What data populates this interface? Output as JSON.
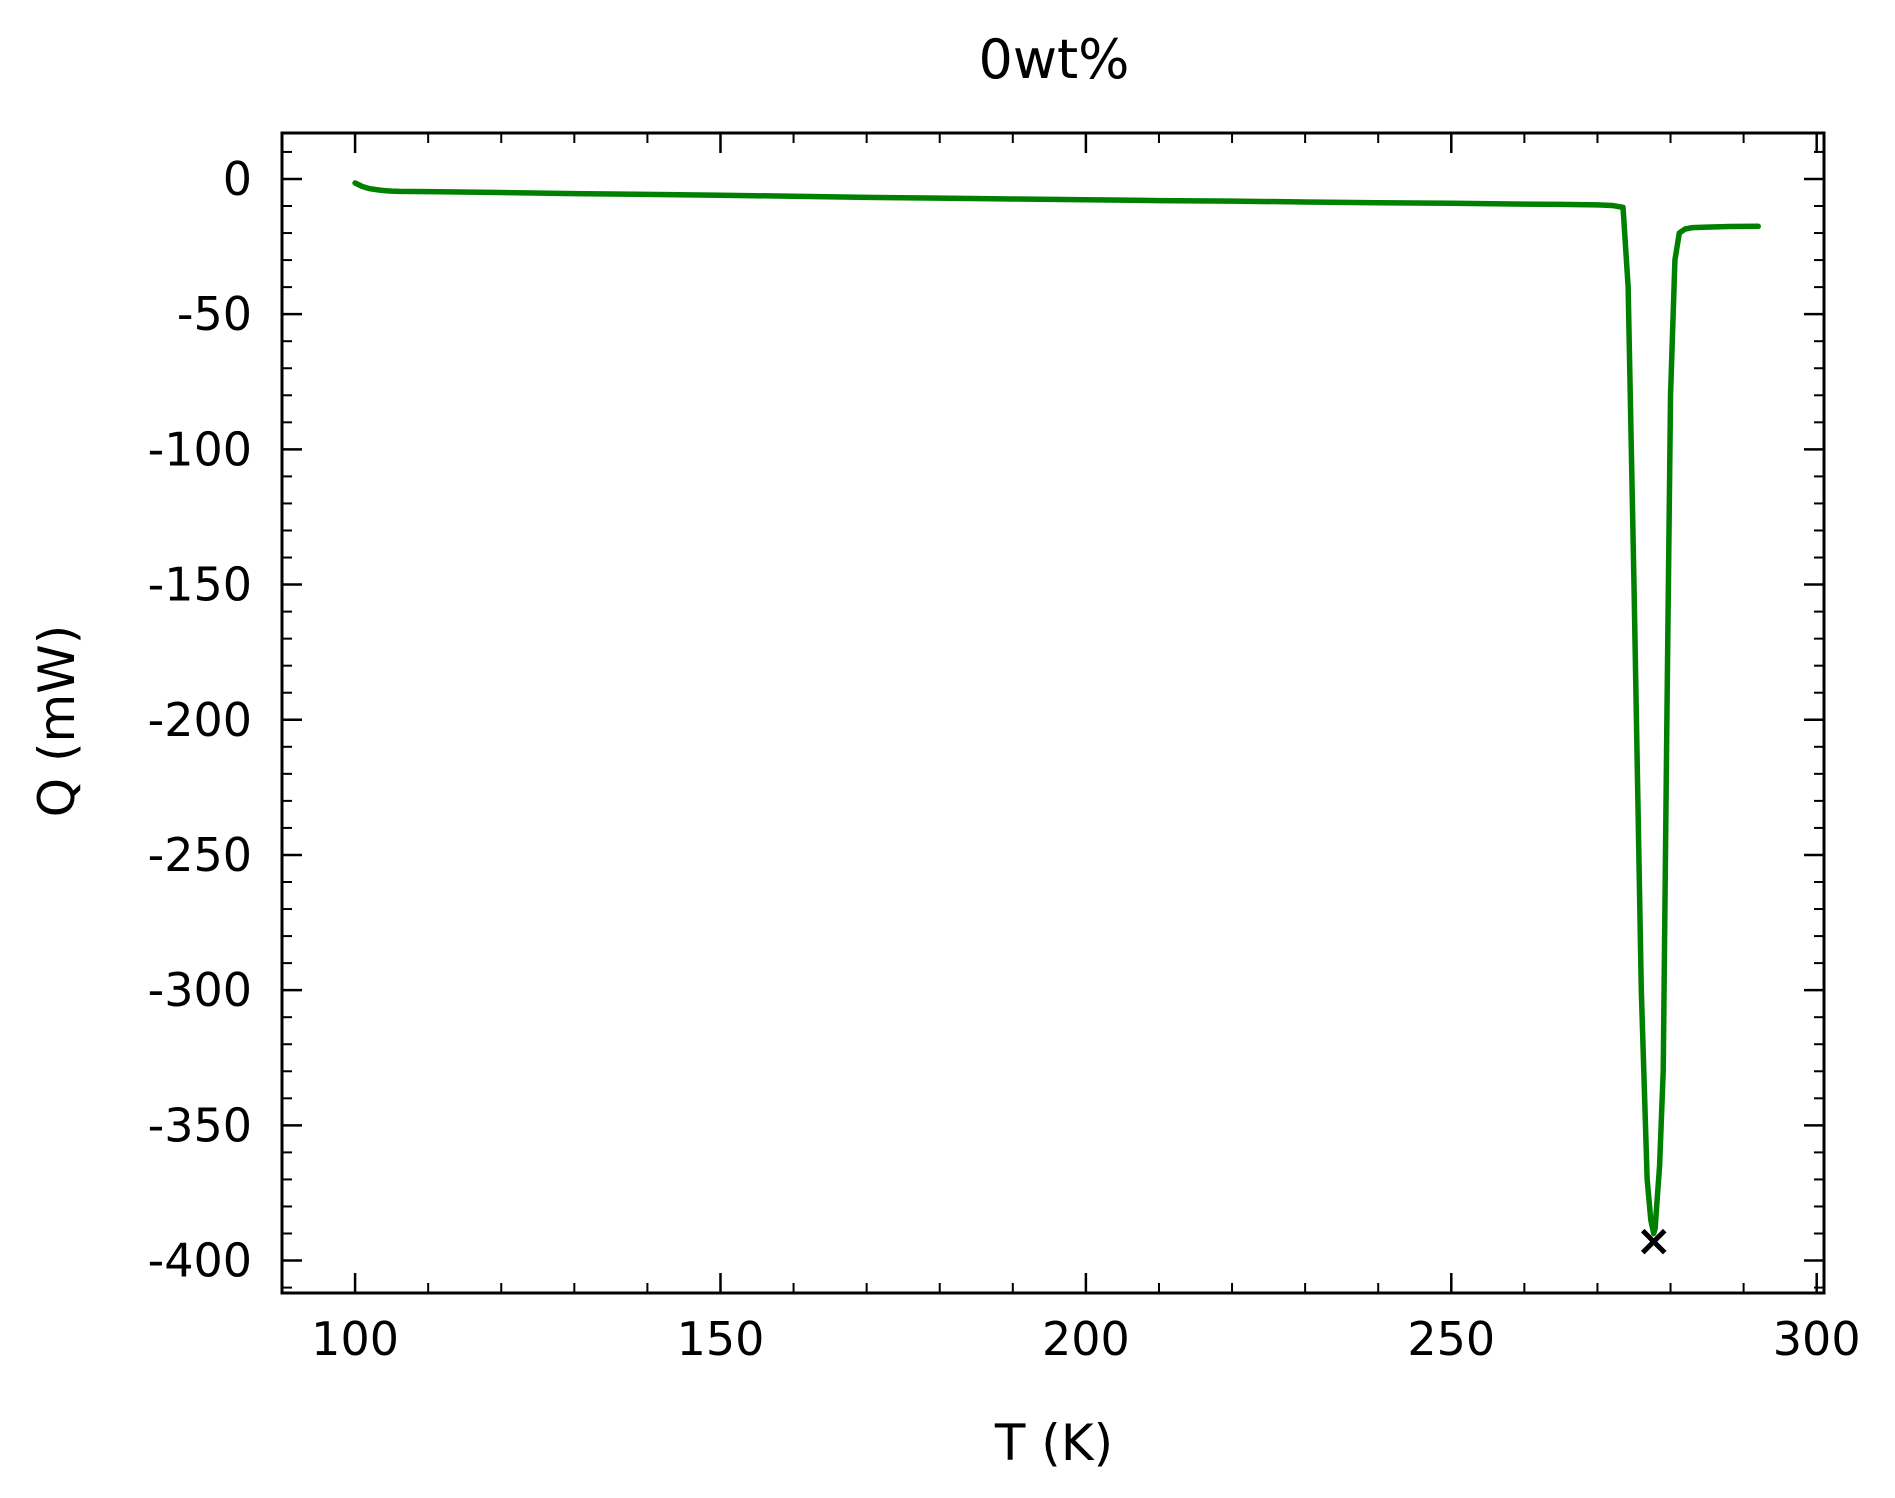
{
  "chart_data": {
    "type": "line",
    "title": "0wt%",
    "xlabel": "T (K)",
    "ylabel": "Q (mW)",
    "xlim": [
      90,
      301
    ],
    "ylim": [
      -412,
      17
    ],
    "xticks": [
      100,
      150,
      200,
      250,
      300
    ],
    "xtick_labels": [
      "100",
      "150",
      "200",
      "250",
      "300"
    ],
    "yticks": [
      0,
      -50,
      -100,
      -150,
      -200,
      -250,
      -300,
      -350,
      -400
    ],
    "ytick_labels": [
      "0",
      "-50",
      "-100",
      "-150",
      "-200",
      "-250",
      "-300",
      "-350",
      "-400"
    ],
    "x_minor_step": 10,
    "y_minor_step": 10,
    "tick_direction": "in",
    "grid": false,
    "legend": "none",
    "series": [
      {
        "color": "#008000",
        "x": [
          100,
          101,
          102,
          103,
          104,
          105,
          106,
          110,
          120,
          130,
          140,
          150,
          160,
          170,
          180,
          190,
          200,
          210,
          220,
          230,
          240,
          250,
          260,
          265,
          270,
          272,
          273.5,
          274.2,
          275,
          276,
          276.8,
          277.3,
          277.7,
          277.9,
          278.1,
          278.5,
          279,
          279.5,
          280,
          280.6,
          281.2,
          282,
          283,
          285,
          288,
          292
        ],
        "y": [
          -1.5,
          -2.8,
          -3.6,
          -4.0,
          -4.3,
          -4.5,
          -4.6,
          -4.7,
          -5.0,
          -5.4,
          -5.7,
          -6.0,
          -6.4,
          -6.8,
          -7.1,
          -7.4,
          -7.7,
          -8.0,
          -8.2,
          -8.5,
          -8.8,
          -9.0,
          -9.3,
          -9.4,
          -9.6,
          -9.8,
          -10.5,
          -40,
          -150,
          -300,
          -370,
          -385,
          -390,
          -388,
          -380,
          -365,
          -330,
          -200,
          -80,
          -30,
          -20,
          -18.5,
          -18,
          -17.8,
          -17.6,
          -17.5
        ]
      }
    ],
    "annotations": [
      {
        "type": "marker",
        "symbol": "x",
        "color": "#000000",
        "x": 277.7,
        "y": -393
      }
    ]
  }
}
